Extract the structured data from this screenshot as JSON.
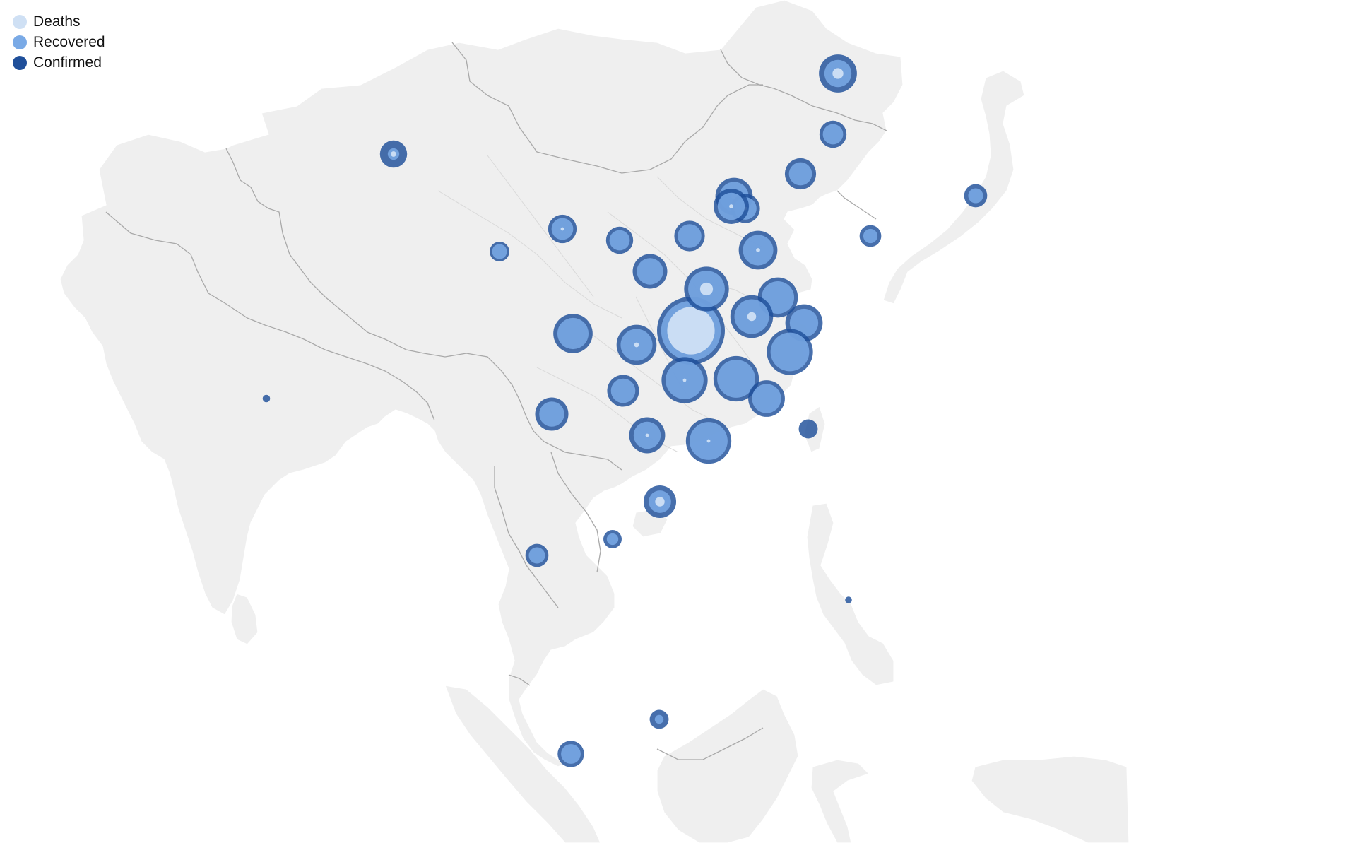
{
  "legend": [
    {
      "key": "deaths",
      "label": "Deaths",
      "color": "#cfe0f4"
    },
    {
      "key": "recovered",
      "label": "Recovered",
      "color": "#7aaae6"
    },
    {
      "key": "confirmed",
      "label": "Confirmed",
      "color": "#1f4f9a"
    }
  ],
  "colors": {
    "land": "#efefef",
    "country_border": "#a9a9a9",
    "province_border": "#d9d9d9"
  },
  "markers": [
    {
      "id": "hubei",
      "rel_confirmed": 1.0,
      "rel_recovered": 0.88,
      "rel_deaths": 0.7
    },
    {
      "id": "heilongjiang",
      "rel_confirmed": 0.56,
      "rel_recovered": 0.4,
      "rel_deaths": 0.16
    },
    {
      "id": "jilin",
      "rel_confirmed": 0.4,
      "rel_recovered": 0.3,
      "rel_deaths": 0
    },
    {
      "id": "liaoning",
      "rel_confirmed": 0.46,
      "rel_recovered": 0.34,
      "rel_deaths": 0
    },
    {
      "id": "beijing",
      "rel_confirmed": 0.55,
      "rel_recovered": 0.43,
      "rel_deaths": 0.08
    },
    {
      "id": "tianjin",
      "rel_confirmed": 0.43,
      "rel_recovered": 0.33,
      "rel_deaths": 0.05
    },
    {
      "id": "hebei",
      "rel_confirmed": 0.52,
      "rel_recovered": 0.4,
      "rel_deaths": 0.06
    },
    {
      "id": "shanxi",
      "rel_confirmed": 0.45,
      "rel_recovered": 0.35,
      "rel_deaths": 0
    },
    {
      "id": "shandong",
      "rel_confirmed": 0.57,
      "rel_recovered": 0.45,
      "rel_deaths": 0.06
    },
    {
      "id": "ningxia",
      "rel_confirmed": 0.4,
      "rel_recovered": 0.3,
      "rel_deaths": 0
    },
    {
      "id": "gansu",
      "rel_confirmed": 0.42,
      "rel_recovered": 0.32,
      "rel_deaths": 0.05
    },
    {
      "id": "qinghai",
      "rel_confirmed": 0.29,
      "rel_recovered": 0.22,
      "rel_deaths": 0
    },
    {
      "id": "xinjiang",
      "rel_confirmed": 0.4,
      "rel_recovered": 0.17,
      "rel_deaths": 0.08
    },
    {
      "id": "shaanxi",
      "rel_confirmed": 0.51,
      "rel_recovered": 0.39,
      "rel_deaths": 0
    },
    {
      "id": "henan",
      "rel_confirmed": 0.66,
      "rel_recovered": 0.54,
      "rel_deaths": 0.19
    },
    {
      "id": "jiangsu",
      "rel_confirmed": 0.59,
      "rel_recovered": 0.48,
      "rel_deaths": 0
    },
    {
      "id": "anhui",
      "rel_confirmed": 0.63,
      "rel_recovered": 0.51,
      "rel_deaths": 0.13
    },
    {
      "id": "shanghai",
      "rel_confirmed": 0.55,
      "rel_recovered": 0.42,
      "rel_deaths": 0
    },
    {
      "id": "zhejiang",
      "rel_confirmed": 0.68,
      "rel_recovered": 0.57,
      "rel_deaths": 0
    },
    {
      "id": "chongqing",
      "rel_confirmed": 0.59,
      "rel_recovered": 0.47,
      "rel_deaths": 0.07
    },
    {
      "id": "sichuan",
      "rel_confirmed": 0.58,
      "rel_recovered": 0.46,
      "rel_deaths": 0
    },
    {
      "id": "hunan",
      "rel_confirmed": 0.68,
      "rel_recovered": 0.56,
      "rel_deaths": 0.05
    },
    {
      "id": "jiangxi",
      "rel_confirmed": 0.67,
      "rel_recovered": 0.56,
      "rel_deaths": 0
    },
    {
      "id": "fujian",
      "rel_confirmed": 0.54,
      "rel_recovered": 0.43,
      "rel_deaths": 0
    },
    {
      "id": "guizhou",
      "rel_confirmed": 0.47,
      "rel_recovered": 0.36,
      "rel_deaths": 0
    },
    {
      "id": "yunnan",
      "rel_confirmed": 0.49,
      "rel_recovered": 0.37,
      "rel_deaths": 0
    },
    {
      "id": "guangxi",
      "rel_confirmed": 0.53,
      "rel_recovered": 0.4,
      "rel_deaths": 0.05
    },
    {
      "id": "guangdong",
      "rel_confirmed": 0.67,
      "rel_recovered": 0.56,
      "rel_deaths": 0.05
    },
    {
      "id": "hainan",
      "rel_confirmed": 0.48,
      "rel_recovered": 0.33,
      "rel_deaths": 0.14
    },
    {
      "id": "taiwan",
      "rel_confirmed": 0.28,
      "rel_recovered": 0,
      "rel_deaths": 0
    },
    {
      "id": "south-korea",
      "rel_confirmed": 0.32,
      "rel_recovered": 0.21,
      "rel_deaths": 0
    },
    {
      "id": "japan",
      "rel_confirmed": 0.34,
      "rel_recovered": 0.22,
      "rel_deaths": 0
    },
    {
      "id": "india",
      "rel_confirmed": 0.11,
      "rel_recovered": 0,
      "rel_deaths": 0
    },
    {
      "id": "thailand",
      "rel_confirmed": 0.34,
      "rel_recovered": 0.24,
      "rel_deaths": 0
    },
    {
      "id": "vietnam",
      "rel_confirmed": 0.27,
      "rel_recovered": 0.17,
      "rel_deaths": 0
    },
    {
      "id": "philippines",
      "rel_confirmed": 0.1,
      "rel_recovered": 0,
      "rel_deaths": 0
    },
    {
      "id": "singapore",
      "rel_confirmed": 0.39,
      "rel_recovered": 0.29,
      "rel_deaths": 0
    },
    {
      "id": "cambodia",
      "rel_confirmed": 0.28,
      "rel_recovered": 0.13,
      "rel_deaths": 0
    }
  ]
}
